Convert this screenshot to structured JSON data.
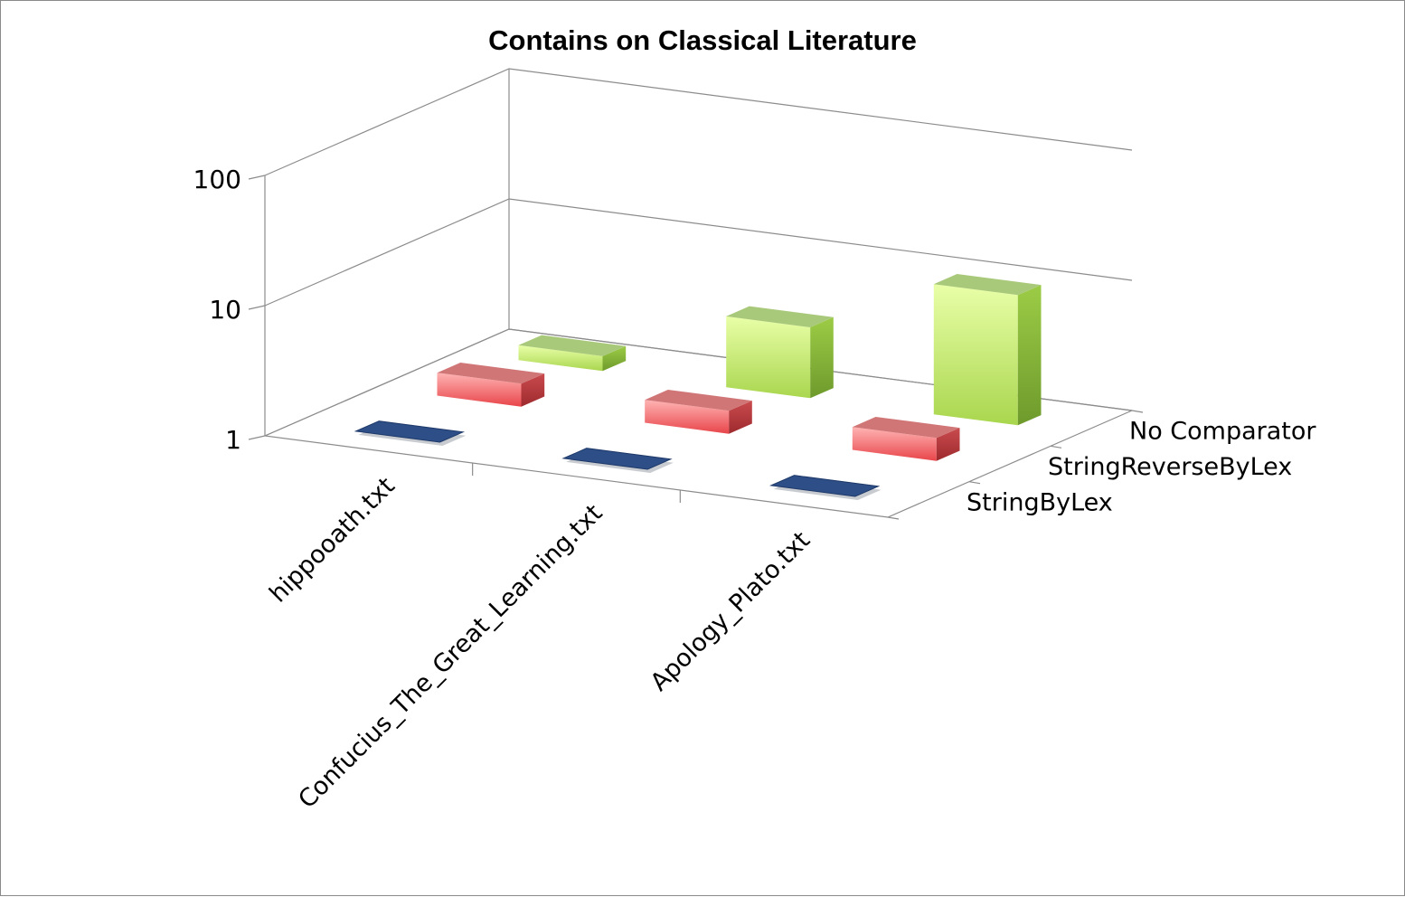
{
  "chart_data": {
    "type": "bar",
    "subtype": "3d-column",
    "title": "Contains on Classical Literature",
    "y_scale": "log",
    "ylim": [
      1,
      100
    ],
    "yticks": [
      "1",
      "10",
      "100"
    ],
    "categories": [
      "hippooath.txt",
      "Confucius_The_Great_Learning.txt",
      "Apology_Plato.txt"
    ],
    "series": [
      {
        "name": "StringByLex",
        "color": "#2e4e87",
        "values": [
          1,
          1,
          1
        ]
      },
      {
        "name": "StringReverseByLex",
        "color": "#e46566",
        "values": [
          1.5,
          1.5,
          1.5
        ]
      },
      {
        "name": "No Comparator",
        "color": "#a6dc4e",
        "values": [
          1.3,
          3.5,
          10
        ]
      }
    ],
    "gridlines": true,
    "legend": "depth-axis labels"
  }
}
